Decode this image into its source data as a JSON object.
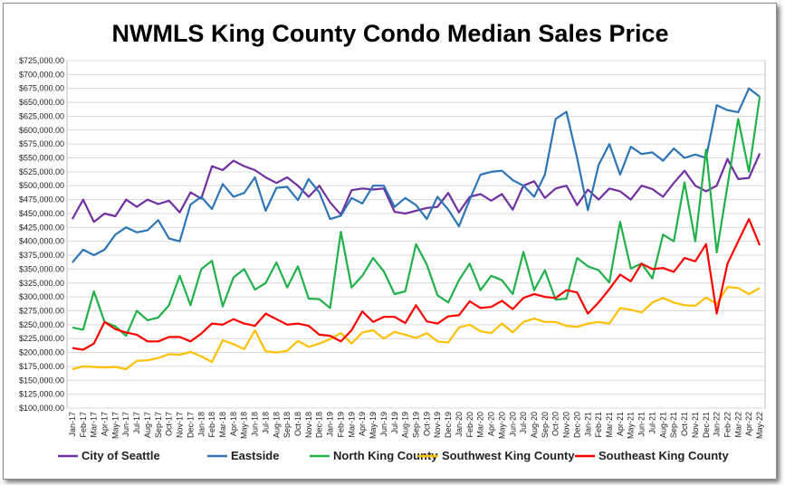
{
  "chart_data": {
    "type": "line",
    "title": "NWMLS King County Condo Median Sales Price",
    "xlabel": "",
    "ylabel": "",
    "ylim": [
      100000,
      725000
    ],
    "ytick_step": 25000,
    "grid": true,
    "legend": "bottom",
    "categories": [
      "Jan-17",
      "Feb-17",
      "Mar-17",
      "Apr-17",
      "May-17",
      "Jun-17",
      "Jul-17",
      "Aug-17",
      "Sep-17",
      "Oct-17",
      "Nov-17",
      "Dec-17",
      "Jan-18",
      "Feb-18",
      "Mar-18",
      "Apr-18",
      "May-18",
      "Jun-18",
      "Jul-18",
      "Aug-18",
      "Sep-18",
      "Oct-18",
      "Nov-18",
      "Dec-18",
      "Jan-19",
      "Feb-19",
      "Mar-19",
      "Apr-19",
      "May-19",
      "Jun-19",
      "Jul-19",
      "Aug-19",
      "Sep-19",
      "Oct-19",
      "Nov-19",
      "Dec-19",
      "Jan-20",
      "Feb-20",
      "Mar-20",
      "Apr-20",
      "May-20",
      "Jun-20",
      "Jul-20",
      "Aug-20",
      "Sep-20",
      "Oct-20",
      "Nov-20",
      "Dec-20",
      "Jan-21",
      "Feb-21",
      "Mar-21",
      "Apr-21",
      "May-21",
      "Jun-21",
      "Jul-21",
      "Aug-21",
      "Sep-21",
      "Oct-21",
      "Nov-21",
      "Dec-21",
      "Jan-22",
      "Feb-22",
      "Mar-22",
      "Apr-22",
      "May-22"
    ],
    "xtick_labels": [
      "Jan-17",
      "Feb-17",
      "Mar-17",
      "Apr-17",
      "May-17",
      "Jun-17",
      "Jul-17",
      "Aug-17",
      "Sep-17",
      "Oct-17",
      "Nov-17",
      "Dec-17",
      "Jan-18",
      "Feb-18",
      "Mar-18",
      "Apr-18",
      "May-18",
      "Jun-18",
      "Jul-18",
      "Aug-18",
      "Sep-18",
      "Oct-18",
      "Nov-18",
      "Dec-18",
      "Jan-19",
      "Feb-19",
      "Mar-19",
      "Apr-19",
      "May-19",
      "Jun-19",
      "Jul-19",
      "Aug-19",
      "Sep-19",
      "Oct-19",
      "Nov-19",
      "Dec-19",
      "Jan-20",
      "Feb-20",
      "Mar-20",
      "Apr-20",
      "May-20",
      "Jun-20",
      "Jul-20",
      "Aug-20",
      "Sep-20",
      "Oct-20",
      "Nov-20",
      "Dec-20",
      "Jan-21",
      "Feb-21",
      "Mar-21",
      "Apr-21",
      "May-21",
      "Jun-21",
      "Jul-21",
      "Aug-21",
      "Sep-21",
      "Oct-21",
      "Nov-21",
      "Dec-21",
      "Jan-22",
      "Feb-22",
      "Mar-22",
      "Apr-22",
      "May-22"
    ],
    "series": [
      {
        "name": "City of Seattle",
        "color": "#7030a0",
        "values": [
          440000,
          475000,
          435000,
          450000,
          445000,
          475000,
          462000,
          475000,
          467000,
          473000,
          452000,
          488000,
          477000,
          535000,
          528000,
          545000,
          535000,
          528000,
          515000,
          505000,
          515000,
          500000,
          480000,
          500000,
          470000,
          448000,
          492000,
          495000,
          493000,
          495000,
          453000,
          450000,
          455000,
          460000,
          462000,
          487000,
          452000,
          480000,
          485000,
          473000,
          485000,
          457000,
          500000,
          508000,
          478000,
          495000,
          500000,
          465000,
          493000,
          475000,
          495000,
          490000,
          475000,
          500000,
          494000,
          480000,
          505000,
          527000,
          500000,
          490000,
          500000,
          548000,
          512000,
          514000,
          558000
        ]
      },
      {
        "name": "Eastside",
        "color": "#2e75b6",
        "values": [
          362000,
          385000,
          375000,
          385000,
          412000,
          425000,
          416000,
          420000,
          438000,
          405000,
          400000,
          466000,
          480000,
          458000,
          503000,
          480000,
          487000,
          515000,
          455000,
          496000,
          498000,
          474000,
          512000,
          488000,
          440000,
          446000,
          478000,
          468000,
          500000,
          500000,
          462000,
          478000,
          465000,
          440000,
          480000,
          457000,
          427000,
          475000,
          520000,
          525000,
          527000,
          510000,
          500000,
          480000,
          520000,
          620000,
          633000,
          550000,
          456000,
          537000,
          575000,
          520000,
          570000,
          557000,
          560000,
          545000,
          567000,
          550000,
          556000,
          550000,
          645000,
          636000,
          632000,
          675000,
          660000
        ]
      },
      {
        "name": "North King County",
        "color": "#22b04b",
        "values": [
          245000,
          241000,
          310000,
          255000,
          247000,
          230000,
          275000,
          258000,
          263000,
          285000,
          338000,
          285000,
          350000,
          365000,
          283000,
          335000,
          350000,
          313000,
          325000,
          362000,
          317000,
          355000,
          297000,
          296000,
          280000,
          417000,
          317000,
          338000,
          370000,
          346000,
          305000,
          310000,
          395000,
          358000,
          303000,
          290000,
          330000,
          360000,
          312000,
          338000,
          330000,
          305000,
          381000,
          312000,
          348000,
          295000,
          297000,
          370000,
          355000,
          348000,
          326000,
          435000,
          351000,
          360000,
          333000,
          412000,
          400000,
          506000,
          400000,
          565000,
          380000,
          500000,
          620000,
          525000,
          660000
        ]
      },
      {
        "name": "Southwest King County",
        "color": "#ffc000",
        "values": [
          170000,
          175000,
          174000,
          173000,
          174000,
          170000,
          185000,
          186000,
          190000,
          197000,
          196000,
          201000,
          193000,
          183000,
          222000,
          215000,
          206000,
          240000,
          202000,
          200000,
          203000,
          221000,
          210000,
          216000,
          224000,
          235000,
          216000,
          236000,
          240000,
          225000,
          237000,
          232000,
          226000,
          235000,
          220000,
          218000,
          245000,
          250000,
          238000,
          235000,
          252000,
          236000,
          255000,
          261000,
          255000,
          255000,
          248000,
          246000,
          252000,
          255000,
          252000,
          280000,
          277000,
          272000,
          290000,
          298000,
          290000,
          285000,
          284000,
          299000,
          287000,
          318000,
          316000,
          305000,
          316000
        ]
      },
      {
        "name": "Southeast King County",
        "color": "#ff0000",
        "values": [
          208000,
          205000,
          216000,
          255000,
          242000,
          236000,
          232000,
          220000,
          220000,
          228000,
          228000,
          220000,
          234000,
          252000,
          250000,
          260000,
          252000,
          248000,
          270000,
          260000,
          250000,
          252000,
          248000,
          232000,
          230000,
          220000,
          240000,
          274000,
          255000,
          264000,
          264000,
          253000,
          285000,
          256000,
          252000,
          265000,
          267000,
          292000,
          280000,
          282000,
          293000,
          278000,
          298000,
          305000,
          300000,
          298000,
          312000,
          308000,
          270000,
          290000,
          314000,
          340000,
          328000,
          360000,
          350000,
          352000,
          345000,
          370000,
          364000,
          395000,
          270000,
          360000,
          400000,
          440000,
          393000
        ]
      }
    ]
  }
}
